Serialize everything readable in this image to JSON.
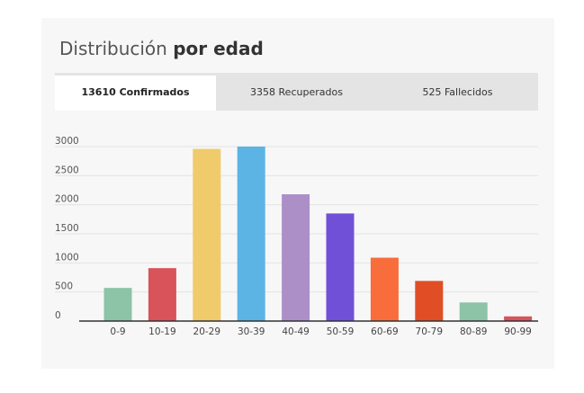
{
  "header": {
    "title_normal": "Distribución",
    "title_bold": "por edad"
  },
  "tabs": [
    {
      "label": "13610 Confirmados",
      "active": true
    },
    {
      "label": "3358 Recuperados",
      "active": false
    },
    {
      "label": "525 Fallecidos",
      "active": false
    }
  ],
  "chart_data": {
    "type": "bar",
    "title": "Distribución por edad",
    "xlabel": "",
    "ylabel": "",
    "ylim": [
      0,
      3000
    ],
    "yticks": [
      0,
      500,
      1000,
      1500,
      2000,
      2500,
      3000
    ],
    "grid": true,
    "categories": [
      "0-9",
      "10-19",
      "20-29",
      "30-39",
      "40-49",
      "50-59",
      "60-69",
      "70-79",
      "80-89",
      "90-99"
    ],
    "values": [
      570,
      910,
      2960,
      3000,
      2180,
      1850,
      1090,
      690,
      320,
      80
    ],
    "colors": [
      "#8dc3a7",
      "#d9535a",
      "#f0cb6c",
      "#5cb4e4",
      "#ad8fc8",
      "#7150d8",
      "#f86d3b",
      "#e04e26",
      "#8dc3a7",
      "#d9535a"
    ]
  }
}
